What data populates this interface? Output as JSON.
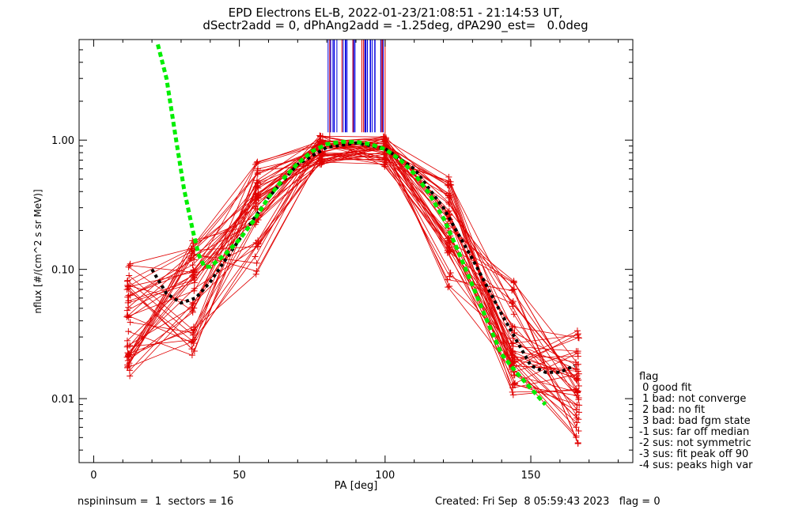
{
  "title_line1": "EPD Electrons EL-B, 2022-01-23/21:08:51 - 21:14:53 UT,",
  "title_line2": "dSectr2add = 0, dPhAng2add = -1.25deg, dPA290_est=   0.0deg",
  "footer_left": "nspininsum =  1  sectors = 16",
  "footer_right": "Created: Fri Sep  8 05:59:43 2023   flag = 0",
  "legend": {
    "title": "flag",
    "items": [
      " 0 good fit",
      " 1 bad: not converge",
      " 2 bad: no fit",
      " 3 bad: bad fgm state",
      "-1 sus: far off median",
      "-2 sus: not symmetric",
      "-3 sus: fit peak off 90",
      "-4 sus: peaks high var"
    ]
  },
  "colors": {
    "red": "#e00000",
    "blue": "#0000e0",
    "green": "#00ee00",
    "black": "#000000"
  },
  "chart_data": {
    "type": "line",
    "xlabel": "PA [deg]",
    "ylabel": "nflux [#/(cm^2 s sr MeV)]",
    "xlim": [
      -5,
      185
    ],
    "ylim": [
      0.0032,
      6.0
    ],
    "ylog": true,
    "xticks": [
      0,
      50,
      100,
      150
    ],
    "xtick_labels": [
      "0",
      "50",
      "100",
      "150"
    ],
    "yticks": [
      0.01,
      0.1,
      1.0
    ],
    "ytick_labels": [
      "0.01",
      "0.10",
      "1.00"
    ],
    "pa_bins": [
      12,
      14,
      34,
      36,
      56,
      58,
      78,
      80,
      100,
      102,
      122,
      124,
      144,
      146,
      166,
      168
    ],
    "median_curve": {
      "color": "black",
      "x": [
        20,
        25,
        30,
        35,
        40,
        50,
        60,
        70,
        80,
        90,
        100,
        110,
        120,
        130,
        140,
        150,
        155,
        160,
        165
      ],
      "y": [
        0.1,
        0.065,
        0.055,
        0.06,
        0.08,
        0.17,
        0.36,
        0.65,
        0.88,
        0.95,
        0.86,
        0.6,
        0.3,
        0.12,
        0.045,
        0.018,
        0.016,
        0.016,
        0.018
      ]
    },
    "fit_curve": {
      "color": "green",
      "x": [
        22,
        25,
        28,
        31,
        34,
        36,
        38,
        40,
        45,
        50,
        55,
        60,
        65,
        70,
        75,
        80,
        85,
        90,
        95,
        100,
        105,
        110,
        115,
        120,
        125,
        130,
        135,
        140,
        145,
        150,
        155
      ],
      "y": [
        5.5,
        3.0,
        1.1,
        0.42,
        0.2,
        0.13,
        0.105,
        0.105,
        0.13,
        0.17,
        0.24,
        0.36,
        0.5,
        0.66,
        0.82,
        0.93,
        0.97,
        0.97,
        0.93,
        0.85,
        0.71,
        0.55,
        0.39,
        0.25,
        0.14,
        0.075,
        0.04,
        0.022,
        0.016,
        0.012,
        0.009
      ]
    }
  }
}
